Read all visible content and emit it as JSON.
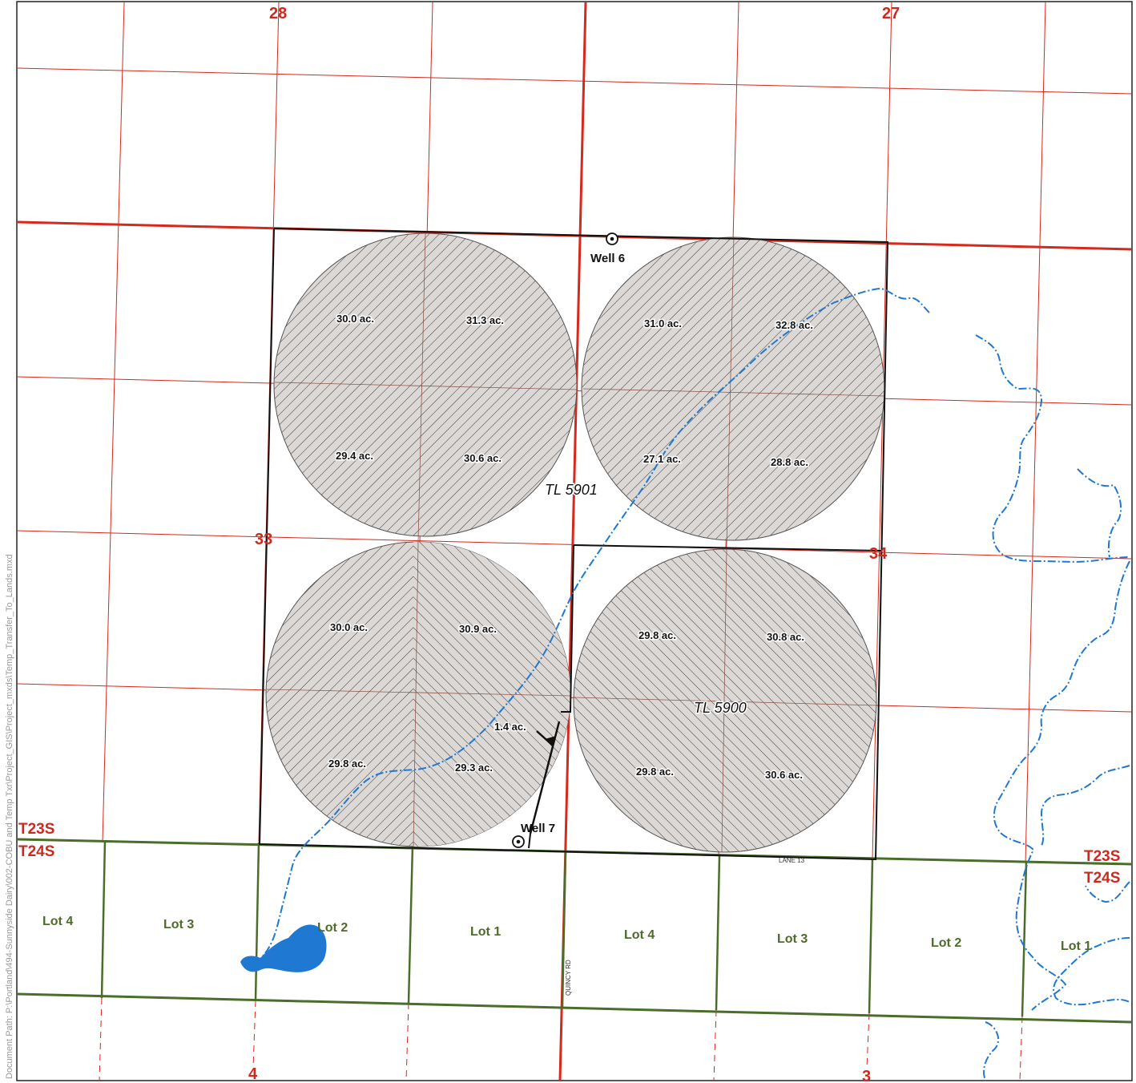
{
  "map": {
    "doc_path": "Document Path: P:\\Portland\\494-Sunnyside Dairy\\002-COBU and Temp Txr\\Project_GIS\\Project_mxds\\Temp_Transfer_To_Lands.mxd",
    "sections": {
      "s28": "28",
      "s27": "27",
      "s33": "33",
      "s34": "34",
      "s4": "4",
      "s3": "3"
    },
    "townships": {
      "t23s_left": "T23S",
      "t24s_left": "T24S",
      "t23s_right": "T23S",
      "t24s_right": "T24S"
    },
    "lots": [
      "Lot 4",
      "Lot 3",
      "Lot 2",
      "Lot 1",
      "Lot 4",
      "Lot 3",
      "Lot 2",
      "Lot 1"
    ],
    "acreages": {
      "nw_a": "30.0 ac.",
      "nw_b": "31.3 ac.",
      "nw_c": "29.4 ac.",
      "nw_d": "30.6 ac.",
      "ne_a": "31.0 ac.",
      "ne_b": "32.8 ac.",
      "ne_c": "27.1 ac.",
      "ne_d": "28.8 ac.",
      "sw_a": "30.0 ac.",
      "sw_b": "30.9 ac.",
      "sw_c": "29.8 ac.",
      "sw_d": "29.3 ac.",
      "sw_e": "1.4 ac.",
      "se_a": "29.8 ac.",
      "se_b": "30.8 ac.",
      "se_c": "29.8 ac.",
      "se_d": "30.6 ac."
    },
    "taxlots": {
      "upper": "TL 5901",
      "lower": "TL 5900"
    },
    "wells": {
      "w6": "Well 6",
      "w7": "Well 7"
    },
    "roads": {
      "quincy": "QUINCY RD",
      "lane": "LANE 13"
    },
    "colors": {
      "section_line": "#d6281c",
      "township_line": "#4a6e2a",
      "stream": "#1f78d1",
      "lake": "#1f78d1",
      "pivot_fill": "#dcd8d5",
      "boundary": "#111111"
    }
  }
}
